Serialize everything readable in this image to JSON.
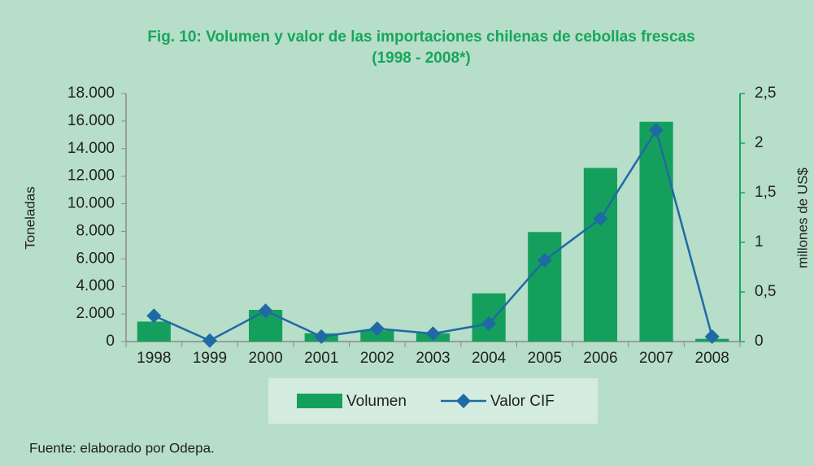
{
  "chart_data": {
    "type": "bar_line",
    "title": "Fig. 10: Volumen y valor de las importaciones chilenas de cebollas frescas",
    "subtitle": "(1998 - 2008*)",
    "ylabel": "Toneladas",
    "y2label": "millones de US$",
    "source": "Fuente: elaborado por Odepa.",
    "categories": [
      "1998",
      "1999",
      "2000",
      "2001",
      "2002",
      "2003",
      "2004",
      "2005",
      "2006",
      "2007",
      "2008"
    ],
    "series": [
      {
        "name": "Volumen",
        "type": "bar",
        "color": "#14a05c",
        "values": [
          1450,
          0,
          2300,
          600,
          800,
          600,
          3500,
          7950,
          12600,
          15950,
          200
        ]
      },
      {
        "name": "Valor CIF",
        "type": "line",
        "axis": "y2",
        "color": "#1f6aa5",
        "values": [
          0.26,
          0.01,
          0.31,
          0.05,
          0.13,
          0.08,
          0.18,
          0.82,
          1.24,
          2.13,
          0.05
        ]
      }
    ],
    "ylim": [
      0,
      18000
    ],
    "yticks": [
      0,
      {
        "value": 2000,
        "label": "2.000"
      },
      {
        "value": 4000,
        "label": "4.000"
      },
      {
        "value": 6000,
        "label": "6.000"
      },
      {
        "value": 8000,
        "label": "8.000"
      },
      {
        "value": 10000,
        "label": "10.000"
      },
      {
        "value": 12000,
        "label": "12.000"
      },
      {
        "value": 14000,
        "label": "14.000"
      },
      {
        "value": 16000,
        "label": "16.000"
      },
      {
        "value": 18000,
        "label": "18.000"
      }
    ],
    "y2lim": [
      0,
      2.5
    ],
    "y2ticks": [
      0,
      {
        "value": 0.5,
        "label": "0,5"
      },
      1,
      {
        "value": 1.5,
        "label": "1,5"
      },
      2,
      {
        "value": 2.5,
        "label": "2,5"
      }
    ],
    "legend": "bottom"
  }
}
